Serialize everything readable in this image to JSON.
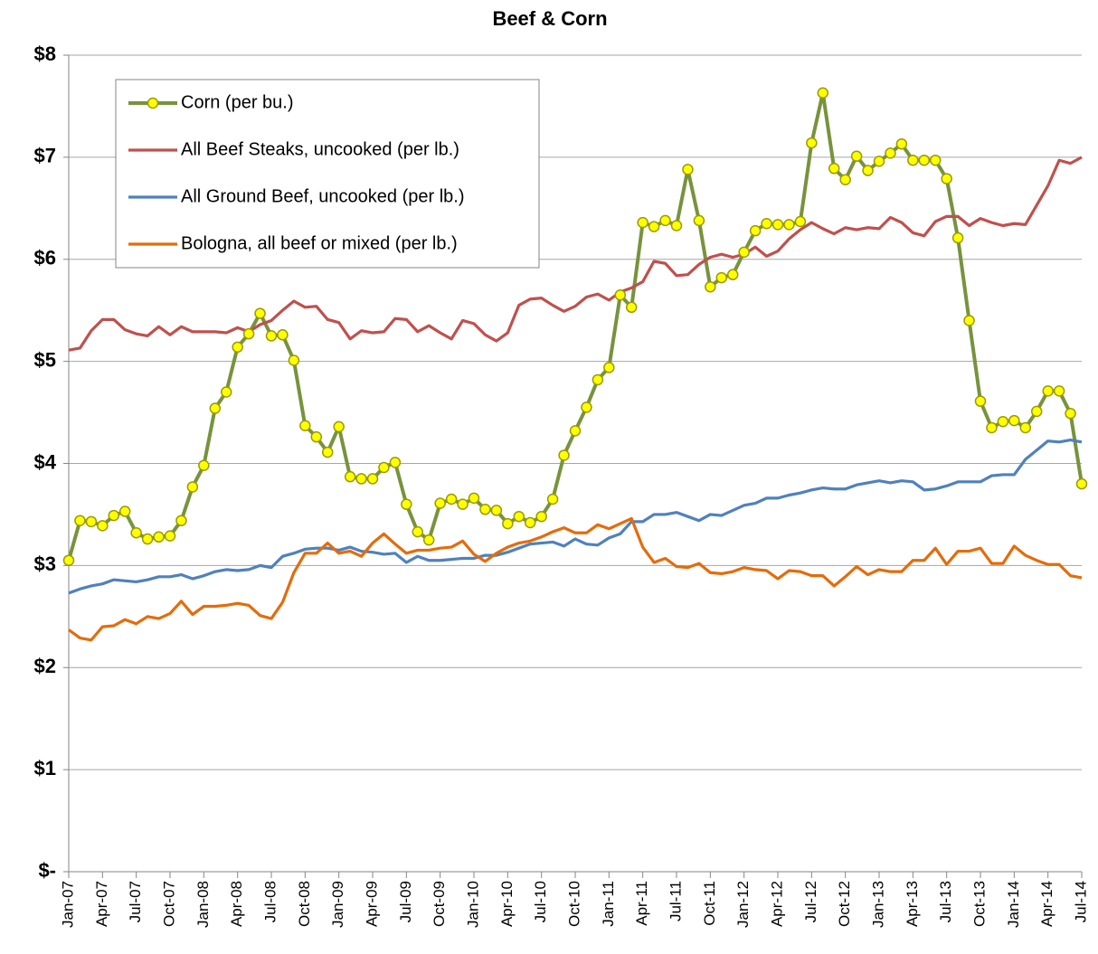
{
  "chart_data": {
    "type": "line",
    "title": "Beef & Corn",
    "categories": [
      "Jan-07",
      null,
      null,
      "Apr-07",
      null,
      null,
      "Jul-07",
      null,
      null,
      "Oct-07",
      null,
      null,
      "Jan-08",
      null,
      null,
      "Apr-08",
      null,
      null,
      "Jul-08",
      null,
      null,
      "Oct-08",
      null,
      null,
      "Jan-09",
      null,
      null,
      "Apr-09",
      null,
      null,
      "Jul-09",
      null,
      null,
      "Oct-09",
      null,
      null,
      "Jan-10",
      null,
      null,
      "Apr-10",
      null,
      null,
      "Jul-10",
      null,
      null,
      "Oct-10",
      null,
      null,
      "Jan-11",
      null,
      null,
      "Apr-11",
      null,
      null,
      "Jul-11",
      null,
      null,
      "Oct-11",
      null,
      null,
      "Jan-12",
      null,
      null,
      "Apr-12",
      null,
      null,
      "Jul-12",
      null,
      null,
      "Oct-12",
      null,
      null,
      "Jan-13",
      null,
      null,
      "Apr-13",
      null,
      null,
      "Jul-13",
      null,
      null,
      "Oct-13",
      null,
      null,
      "Jan-14",
      null,
      null,
      "Apr-14",
      null,
      null,
      "Jul-14"
    ],
    "series": [
      {
        "name": "Corn (per bu.)",
        "color": "#77933c",
        "marker": "circle",
        "marker_fill": "#ffff00",
        "marker_edge": "#9a9a00",
        "values": [
          3.05,
          3.44,
          3.43,
          3.39,
          3.49,
          3.53,
          3.32,
          3.26,
          3.28,
          3.29,
          3.44,
          3.77,
          3.98,
          4.54,
          4.7,
          5.14,
          5.27,
          5.47,
          5.25,
          5.26,
          5.01,
          4.37,
          4.26,
          4.11,
          4.36,
          3.87,
          3.85,
          3.85,
          3.96,
          4.01,
          3.6,
          3.33,
          3.25,
          3.61,
          3.65,
          3.6,
          3.66,
          3.55,
          3.54,
          3.41,
          3.48,
          3.42,
          3.48,
          3.65,
          4.08,
          4.32,
          4.55,
          4.82,
          4.94,
          5.65,
          5.53,
          6.36,
          6.32,
          6.38,
          6.33,
          6.88,
          6.38,
          5.73,
          5.82,
          5.85,
          6.07,
          6.28,
          6.35,
          6.34,
          6.34,
          6.37,
          7.14,
          7.63,
          6.89,
          6.78,
          7.01,
          6.87,
          6.96,
          7.04,
          7.13,
          6.97,
          6.97,
          6.97,
          6.79,
          6.21,
          5.4,
          4.61,
          4.35,
          4.41,
          4.42,
          4.35,
          4.51,
          4.71,
          4.71,
          4.49,
          3.8
        ]
      },
      {
        "name": "All Beef Steaks, uncooked (per lb.)",
        "color": "#c0504d",
        "values": [
          5.11,
          5.13,
          5.3,
          5.41,
          5.41,
          5.31,
          5.27,
          5.25,
          5.34,
          5.26,
          5.34,
          5.29,
          5.29,
          5.29,
          5.28,
          5.33,
          5.29,
          5.36,
          5.4,
          5.5,
          5.59,
          5.53,
          5.54,
          5.41,
          5.38,
          5.22,
          5.3,
          5.28,
          5.29,
          5.42,
          5.41,
          5.29,
          5.35,
          5.28,
          5.22,
          5.4,
          5.37,
          5.26,
          5.2,
          5.28,
          5.55,
          5.61,
          5.62,
          5.55,
          5.49,
          5.54,
          5.63,
          5.66,
          5.6,
          5.68,
          5.72,
          5.78,
          5.98,
          5.96,
          5.84,
          5.85,
          5.95,
          6.02,
          6.05,
          6.02,
          6.05,
          6.12,
          6.03,
          6.08,
          6.2,
          6.29,
          6.36,
          6.3,
          6.25,
          6.31,
          6.29,
          6.31,
          6.3,
          6.41,
          6.36,
          6.26,
          6.23,
          6.37,
          6.42,
          6.42,
          6.33,
          6.4,
          6.36,
          6.33,
          6.35,
          6.34,
          6.53,
          6.72,
          6.97,
          6.94,
          7.0
        ]
      },
      {
        "name": "All Ground Beef, uncooked (per lb.)",
        "color": "#4f81bd",
        "values": [
          2.73,
          2.77,
          2.8,
          2.82,
          2.86,
          2.85,
          2.84,
          2.86,
          2.89,
          2.89,
          2.91,
          2.87,
          2.9,
          2.94,
          2.96,
          2.95,
          2.96,
          3.0,
          2.98,
          3.09,
          3.12,
          3.16,
          3.17,
          3.17,
          3.15,
          3.18,
          3.14,
          3.13,
          3.11,
          3.12,
          3.03,
          3.09,
          3.05,
          3.05,
          3.06,
          3.07,
          3.07,
          3.1,
          3.1,
          3.13,
          3.17,
          3.21,
          3.22,
          3.23,
          3.19,
          3.26,
          3.21,
          3.2,
          3.27,
          3.31,
          3.43,
          3.43,
          3.5,
          3.5,
          3.52,
          3.48,
          3.44,
          3.5,
          3.49,
          3.54,
          3.59,
          3.61,
          3.66,
          3.66,
          3.69,
          3.71,
          3.74,
          3.76,
          3.75,
          3.75,
          3.79,
          3.81,
          3.83,
          3.81,
          3.83,
          3.82,
          3.74,
          3.75,
          3.78,
          3.82,
          3.82,
          3.82,
          3.88,
          3.89,
          3.89,
          4.04,
          4.13,
          4.22,
          4.21,
          4.23,
          4.21
        ]
      },
      {
        "name": "Bologna, all beef or mixed (per lb.)",
        "color": "#e46c0a",
        "values": [
          2.37,
          2.29,
          2.27,
          2.4,
          2.41,
          2.47,
          2.43,
          2.5,
          2.48,
          2.53,
          2.65,
          2.52,
          2.6,
          2.6,
          2.61,
          2.63,
          2.61,
          2.51,
          2.48,
          2.64,
          2.93,
          3.12,
          3.12,
          3.22,
          3.12,
          3.14,
          3.09,
          3.22,
          3.31,
          3.21,
          3.12,
          3.15,
          3.15,
          3.17,
          3.18,
          3.24,
          3.11,
          3.04,
          3.12,
          3.18,
          3.22,
          3.24,
          3.28,
          3.33,
          3.37,
          3.32,
          3.32,
          3.4,
          3.36,
          3.41,
          3.46,
          3.18,
          3.03,
          3.07,
          2.99,
          2.98,
          3.02,
          2.93,
          2.92,
          2.94,
          2.98,
          2.96,
          2.95,
          2.87,
          2.95,
          2.94,
          2.9,
          2.9,
          2.8,
          2.89,
          2.99,
          2.91,
          2.96,
          2.94,
          2.94,
          3.05,
          3.05,
          3.17,
          3.01,
          3.14,
          3.14,
          3.17,
          3.02,
          3.02,
          3.19,
          3.1,
          3.05,
          3.01,
          3.01,
          2.9,
          2.88
        ]
      }
    ],
    "ylim": [
      0,
      8
    ],
    "yticks": [
      {
        "value": 0,
        "label": "$-"
      },
      {
        "value": 1,
        "label": "$1"
      },
      {
        "value": 2,
        "label": "$2"
      },
      {
        "value": 3,
        "label": "$3"
      },
      {
        "value": 4,
        "label": "$4"
      },
      {
        "value": 5,
        "label": "$5"
      },
      {
        "value": 6,
        "label": "$6"
      },
      {
        "value": 7,
        "label": "$7"
      },
      {
        "value": 8,
        "label": "$8"
      }
    ],
    "grid": true,
    "legend": "upper left"
  }
}
